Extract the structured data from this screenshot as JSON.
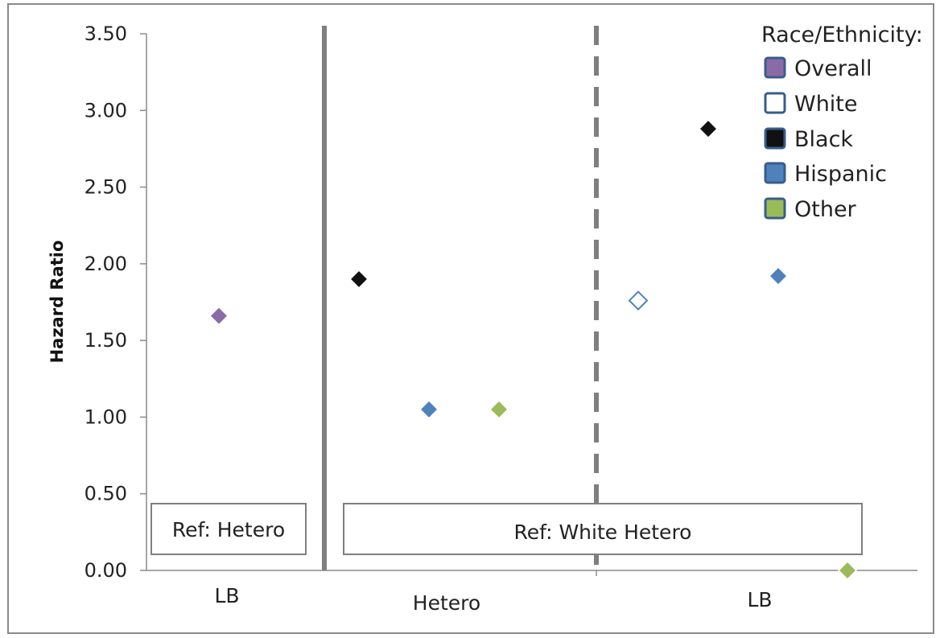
{
  "chart_data": {
    "type": "scatter",
    "ylabel": "Hazard Ratio",
    "ylim": [
      0,
      3.5
    ],
    "yticks": [
      "0.00",
      "0.50",
      "1.00",
      "1.50",
      "2.00",
      "2.50",
      "3.00",
      "3.50"
    ],
    "categories": [
      "LB",
      "Hetero",
      "LB"
    ],
    "legend_title": "Race/Ethnicity:",
    "legend_position": "top-right",
    "ref_labels": [
      "Ref: Hetero",
      "Ref: White Hetero"
    ],
    "series": [
      {
        "name": "Overall",
        "color": "#8b6aa8",
        "filled": true,
        "points": [
          {
            "category_index": 0,
            "y": 1.66
          }
        ]
      },
      {
        "name": "White",
        "color": "#4f81bd",
        "filled": false,
        "points": [
          {
            "category_index": 2,
            "y": 1.76
          }
        ]
      },
      {
        "name": "Black",
        "color": "#111111",
        "filled": true,
        "points": [
          {
            "category_index": 1,
            "y": 1.9
          },
          {
            "category_index": 2,
            "y": 2.88
          }
        ]
      },
      {
        "name": "Hispanic",
        "color": "#4f81bd",
        "filled": true,
        "points": [
          {
            "category_index": 1,
            "y": 1.05
          },
          {
            "category_index": 2,
            "y": 1.92
          }
        ]
      },
      {
        "name": "Other",
        "color": "#9bbb59",
        "filled": true,
        "points": [
          {
            "category_index": 1,
            "y": 1.05
          },
          {
            "category_index": 2,
            "y": 0.0
          }
        ]
      }
    ]
  }
}
